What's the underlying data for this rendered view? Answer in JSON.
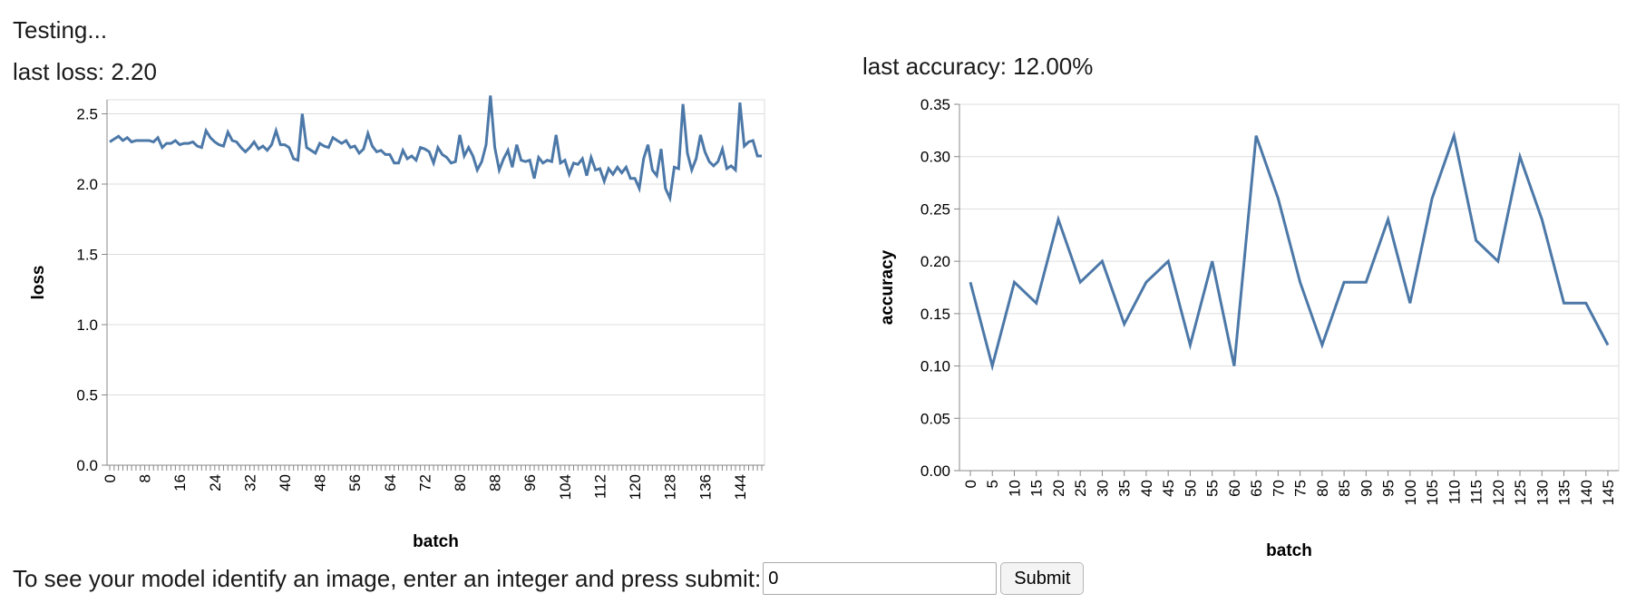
{
  "status": {
    "text": "Testing..."
  },
  "loss_readout": {
    "label": "last loss: 2.20"
  },
  "accuracy_readout": {
    "label": "last accuracy: 12.00%"
  },
  "form": {
    "prompt": "To see your model identify an image, enter an integer and press submit:",
    "input_value": "0",
    "submit_label": "Submit"
  },
  "colors": {
    "series": "#4c78a8",
    "grid": "#dddddd",
    "axis": "#888888"
  },
  "chart_data": [
    {
      "type": "line",
      "xlabel": "batch",
      "ylabel": "loss",
      "ylim": [
        0,
        2.6
      ],
      "yticks": [
        "0.0",
        "0.5",
        "1.0",
        "1.5",
        "2.0",
        "2.5"
      ],
      "ytick_values": [
        0,
        0.5,
        1.0,
        1.5,
        2.0,
        2.5
      ],
      "xtick_labels": [
        "0",
        "8",
        "16",
        "24",
        "32",
        "40",
        "48",
        "56",
        "64",
        "72",
        "80",
        "88",
        "96",
        "104",
        "112",
        "120",
        "128",
        "136",
        "144"
      ],
      "xtick_values": [
        0,
        8,
        16,
        24,
        32,
        40,
        48,
        56,
        64,
        72,
        80,
        88,
        96,
        104,
        112,
        120,
        128,
        136,
        144
      ],
      "xlim": [
        0,
        149
      ],
      "grid": true,
      "series": [
        {
          "values": [
            2.3,
            2.32,
            2.34,
            2.31,
            2.33,
            2.3,
            2.31,
            2.31,
            2.31,
            2.31,
            2.3,
            2.33,
            2.26,
            2.29,
            2.29,
            2.31,
            2.28,
            2.29,
            2.29,
            2.3,
            2.27,
            2.26,
            2.38,
            2.33,
            2.3,
            2.28,
            2.27,
            2.37,
            2.31,
            2.3,
            2.26,
            2.23,
            2.26,
            2.3,
            2.25,
            2.27,
            2.24,
            2.28,
            2.38,
            2.28,
            2.28,
            2.26,
            2.18,
            2.17,
            2.5,
            2.26,
            2.24,
            2.22,
            2.29,
            2.27,
            2.26,
            2.33,
            2.31,
            2.29,
            2.31,
            2.26,
            2.27,
            2.22,
            2.25,
            2.36,
            2.27,
            2.23,
            2.24,
            2.21,
            2.21,
            2.15,
            2.15,
            2.24,
            2.18,
            2.2,
            2.17,
            2.26,
            2.25,
            2.23,
            2.15,
            2.26,
            2.21,
            2.19,
            2.15,
            2.16,
            2.35,
            2.2,
            2.26,
            2.2,
            2.1,
            2.16,
            2.28,
            2.63,
            2.26,
            2.1,
            2.18,
            2.24,
            2.12,
            2.28,
            2.17,
            2.16,
            2.17,
            2.04,
            2.19,
            2.15,
            2.17,
            2.16,
            2.35,
            2.15,
            2.17,
            2.07,
            2.15,
            2.14,
            2.18,
            2.06,
            2.19,
            2.1,
            2.11,
            2.02,
            2.11,
            2.07,
            2.12,
            2.08,
            2.12,
            2.04,
            2.04,
            1.97,
            2.18,
            2.28,
            2.1,
            2.06,
            2.25,
            1.97,
            1.9,
            2.12,
            2.11,
            2.57,
            2.22,
            2.1,
            2.18,
            2.35,
            2.23,
            2.16,
            2.13,
            2.16,
            2.25,
            2.11,
            2.13,
            2.1,
            2.58,
            2.27,
            2.3,
            2.31,
            2.2,
            2.2
          ]
        }
      ]
    },
    {
      "type": "line",
      "xlabel": "batch",
      "ylabel": "accuracy",
      "ylim": [
        0,
        0.35
      ],
      "yticks": [
        "0.00",
        "0.05",
        "0.10",
        "0.15",
        "0.20",
        "0.25",
        "0.30",
        "0.35"
      ],
      "ytick_values": [
        0,
        0.05,
        0.1,
        0.15,
        0.2,
        0.25,
        0.3,
        0.35
      ],
      "xtick_labels": [
        "0",
        "5",
        "10",
        "15",
        "20",
        "25",
        "30",
        "35",
        "40",
        "45",
        "50",
        "55",
        "60",
        "65",
        "70",
        "75",
        "80",
        "85",
        "90",
        "95",
        "100",
        "105",
        "110",
        "115",
        "120",
        "125",
        "130",
        "135",
        "140",
        "145"
      ],
      "grid": true,
      "series": [
        {
          "x": [
            0,
            5,
            10,
            15,
            20,
            25,
            30,
            35,
            40,
            45,
            50,
            55,
            60,
            65,
            70,
            75,
            80,
            85,
            90,
            95,
            100,
            105,
            110,
            115,
            120,
            125,
            130,
            135,
            140,
            145
          ],
          "values": [
            0.18,
            0.1,
            0.18,
            0.16,
            0.24,
            0.18,
            0.2,
            0.14,
            0.18,
            0.2,
            0.12,
            0.2,
            0.1,
            0.32,
            0.26,
            0.18,
            0.12,
            0.18,
            0.18,
            0.24,
            0.16,
            0.26,
            0.32,
            0.22,
            0.2,
            0.3,
            0.24,
            0.16,
            0.16,
            0.12
          ]
        }
      ]
    }
  ]
}
